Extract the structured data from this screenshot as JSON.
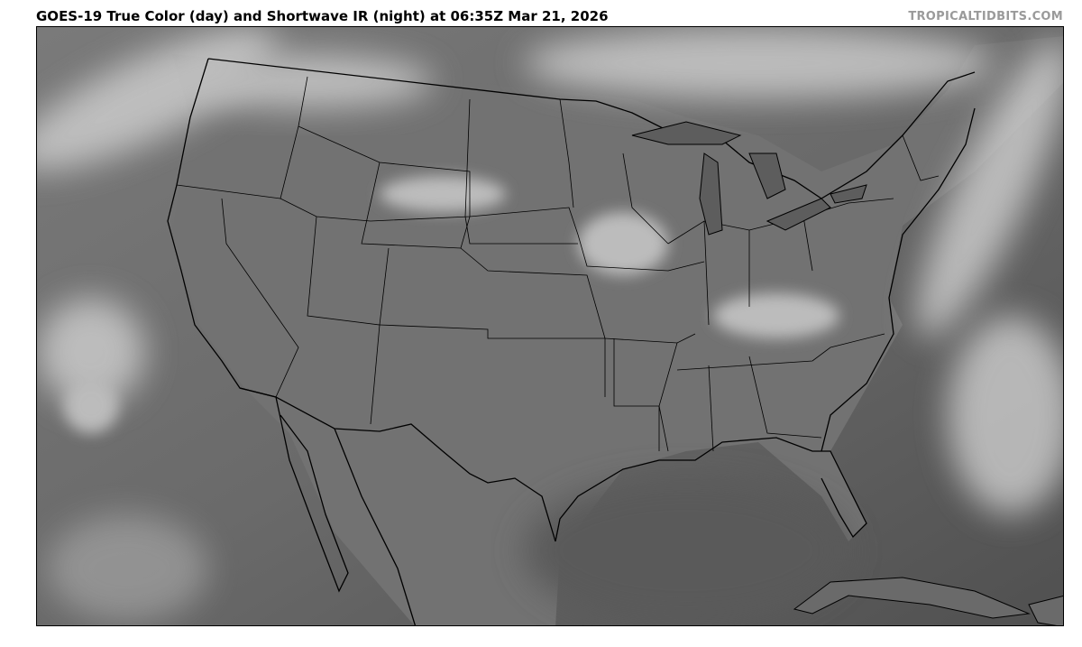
{
  "header": {
    "title": "GOES-19 True Color (day) and Shortwave IR (night) at 06:35Z Mar 21, 2026",
    "credit": "TROPICALTIDBITS.COM"
  },
  "map": {
    "satellite": "GOES-19",
    "product": "True Color (day) and Shortwave IR (night)",
    "valid_time": "06:35Z Mar 21, 2026",
    "region": "Continental United States",
    "colors": {
      "land": "#6e6e6e",
      "ocean": "#4a4a4a",
      "cloud": "#d8d8d8",
      "borders": "#000000"
    }
  }
}
